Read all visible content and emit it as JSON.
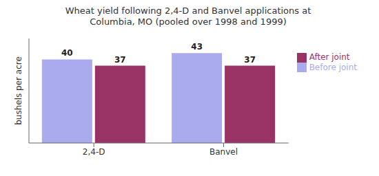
{
  "chart_data": {
    "type": "bar",
    "title": "Wheat yield following 2,4-D and Banvel applications at\nColumbia, MO (pooled over 1998 and 1999)",
    "ylabel": "bushels per acre",
    "categories": [
      "2,4-D",
      "Banvel"
    ],
    "series": [
      {
        "name": "Before joint",
        "color": "#aaaaee",
        "values": [
          40,
          43
        ]
      },
      {
        "name": "After joint",
        "color": "#993366",
        "values": [
          37,
          37
        ]
      }
    ],
    "ylim": [
      0,
      50
    ],
    "tick_labels": "x",
    "data_labels": true,
    "legend": "upper right",
    "grid": false
  }
}
